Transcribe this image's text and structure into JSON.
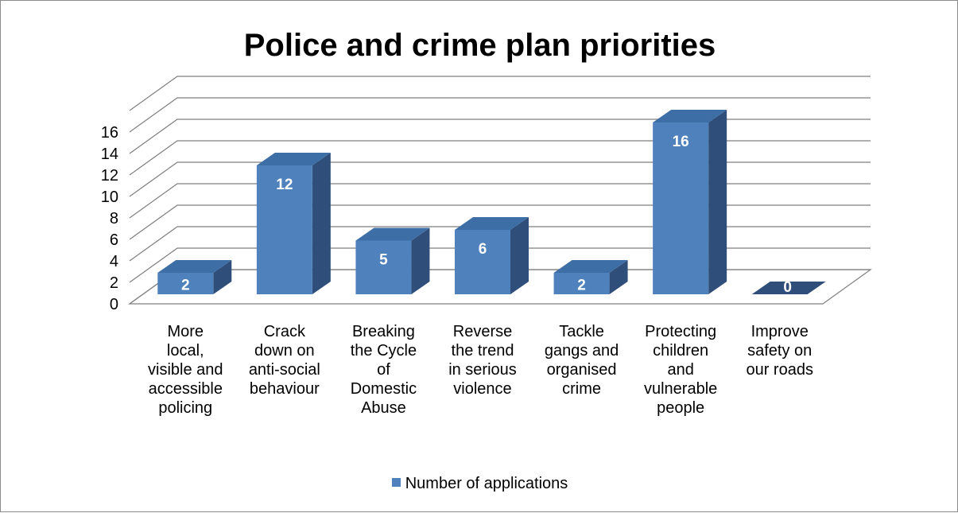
{
  "chart_data": {
    "type": "bar",
    "title": "Police and crime plan priorities",
    "categories": [
      "More local, visible and accessible policing",
      "Crack down on anti-social behaviour",
      "Breaking the Cycle of Domestic Abuse",
      "Reverse the trend in serious violence",
      "Tackle gangs and organised crime",
      "Protecting children and vulnerable people",
      "Improve safety on our roads"
    ],
    "category_lines": [
      [
        "More",
        "local,",
        "visible and",
        "accessible",
        "policing"
      ],
      [
        "Crack",
        "down on",
        "anti-social",
        "behaviour"
      ],
      [
        "Breaking",
        "the Cycle",
        "of",
        "Domestic",
        "Abuse"
      ],
      [
        "Reverse",
        "the trend",
        "in serious",
        "violence"
      ],
      [
        "Tackle",
        "gangs and",
        "organised",
        "crime"
      ],
      [
        "Protecting",
        "children",
        "and",
        "vulnerable",
        "people"
      ],
      [
        "Improve",
        "safety on",
        "our roads"
      ]
    ],
    "series": [
      {
        "name": "Number of applications",
        "values": [
          2,
          12,
          5,
          6,
          2,
          16,
          0
        ]
      }
    ],
    "ylim": [
      0,
      16
    ],
    "yticks": [
      0,
      2,
      4,
      6,
      8,
      10,
      12,
      14,
      16
    ],
    "xlabel": "",
    "ylabel": "",
    "grid": true,
    "three_d": true,
    "legend_position": "bottom",
    "data_labels": true,
    "colors": {
      "bar_front": "#4f81bd",
      "bar_side": "#2f4f7a",
      "bar_top": "#3e6ea6",
      "gridline": "#7f7f7f",
      "label_text": "#ffffff"
    }
  }
}
